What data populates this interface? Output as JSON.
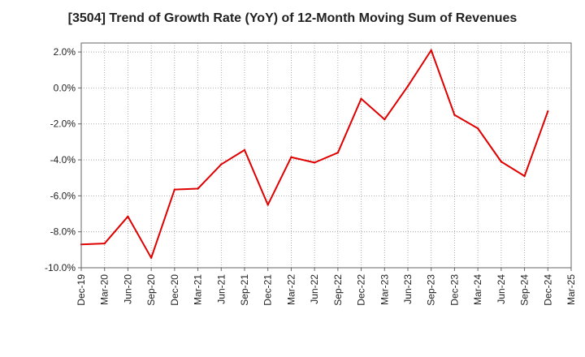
{
  "chart_data": {
    "type": "line",
    "title": "[3504]  Trend of Growth Rate (YoY) of 12-Month Moving Sum of Revenues",
    "xlabel": "",
    "ylabel": "",
    "x_ticks": [
      "Dec-19",
      "Mar-20",
      "Jun-20",
      "Sep-20",
      "Dec-20",
      "Mar-21",
      "Jun-21",
      "Sep-21",
      "Dec-21",
      "Mar-22",
      "Jun-22",
      "Sep-22",
      "Dec-22",
      "Mar-23",
      "Jun-23",
      "Sep-23",
      "Dec-23",
      "Mar-24",
      "Jun-24",
      "Sep-24",
      "Dec-24",
      "Mar-25"
    ],
    "y_ticks": [
      "2.0%",
      "0.0%",
      "-2.0%",
      "-4.0%",
      "-6.0%",
      "-8.0%",
      "-10.0%"
    ],
    "ylim": [
      -10.0,
      2.5
    ],
    "y_unit": "%",
    "grid": true,
    "series": [
      {
        "color": "#e00000",
        "x": [
          "Dec-19",
          "Mar-20",
          "Jun-20",
          "Sep-20",
          "Dec-20",
          "Mar-21",
          "Jun-21",
          "Sep-21",
          "Dec-21",
          "Mar-22",
          "Jun-22",
          "Sep-22",
          "Dec-22",
          "Mar-23",
          "Jun-23",
          "Sep-23",
          "Dec-23",
          "Mar-24",
          "Jun-24",
          "Sep-24",
          "Dec-24"
        ],
        "values": [
          -8.7,
          -8.65,
          -7.15,
          -9.45,
          -5.65,
          -5.6,
          -4.25,
          -3.45,
          -6.5,
          -3.85,
          -4.15,
          -3.6,
          -0.6,
          -1.75,
          0.1,
          2.1,
          -1.5,
          -2.25,
          -4.1,
          -4.9,
          -1.3
        ]
      }
    ]
  }
}
